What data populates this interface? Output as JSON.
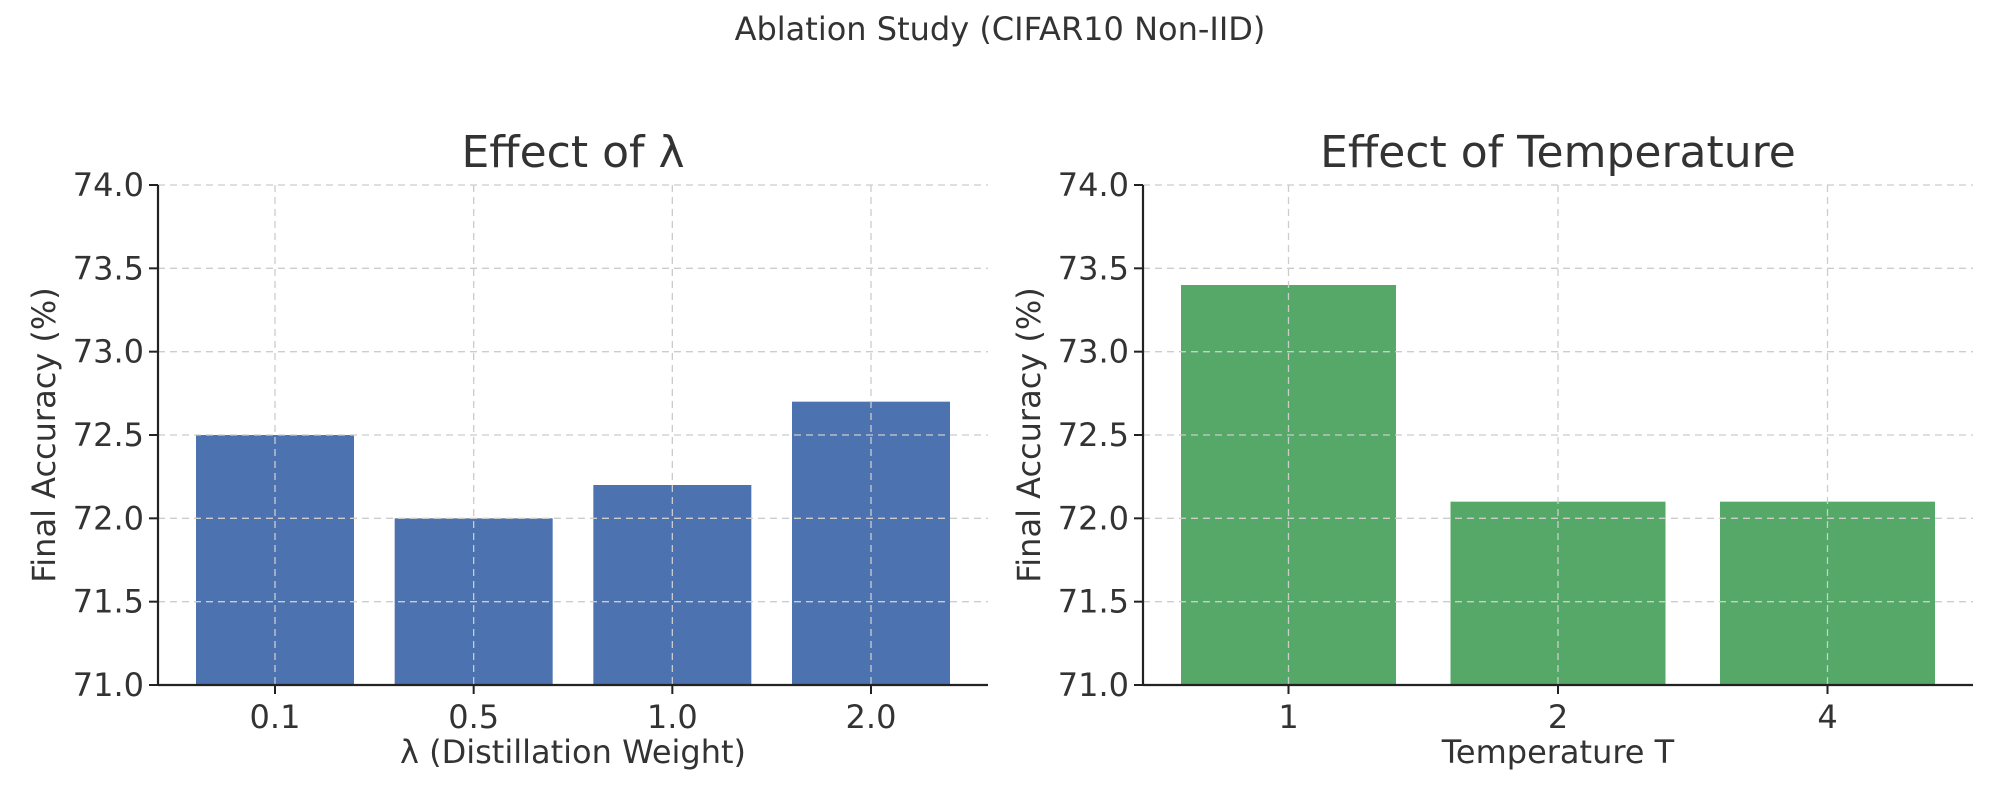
{
  "figure": {
    "suptitle": "Ablation Study (CIFAR10 Non-IID)"
  },
  "chart_data": [
    {
      "type": "bar",
      "title": "Effect of λ",
      "xlabel": "λ (Distillation Weight)",
      "ylabel": "Final Accuracy (%)",
      "categories": [
        "0.1",
        "0.5",
        "1.0",
        "2.0"
      ],
      "values": [
        72.5,
        72.0,
        72.2,
        72.7
      ],
      "ylim": [
        71.0,
        74.0
      ],
      "yticks": [
        "71.0",
        "71.5",
        "72.0",
        "72.5",
        "73.0",
        "73.5",
        "74.0"
      ],
      "color": "#4c72b0",
      "grid": true
    },
    {
      "type": "bar",
      "title": "Effect of Temperature",
      "xlabel": "Temperature T",
      "ylabel": "Final Accuracy (%)",
      "categories": [
        "1",
        "2",
        "4"
      ],
      "values": [
        73.4,
        72.1,
        72.1
      ],
      "ylim": [
        71.0,
        74.0
      ],
      "yticks": [
        "71.0",
        "71.5",
        "72.0",
        "72.5",
        "73.0",
        "73.5",
        "74.0"
      ],
      "color": "#55a868",
      "grid": true
    }
  ]
}
